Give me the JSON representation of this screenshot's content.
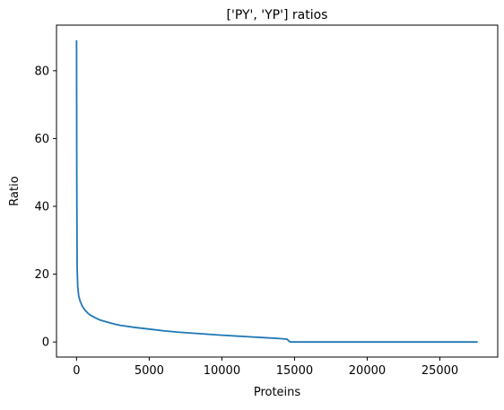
{
  "chart_data": {
    "type": "line",
    "title": "['PY', 'YP'] ratios",
    "xlabel": "Proteins",
    "ylabel": "Ratio",
    "xlim": [
      -1380,
      28980
    ],
    "ylim": [
      -4.45,
      93.45
    ],
    "grid": false,
    "legend": "none",
    "x_ticks": [
      0,
      5000,
      10000,
      15000,
      20000,
      25000
    ],
    "x_tick_labels": [
      "0",
      "5000",
      "10000",
      "15000",
      "20000",
      "25000"
    ],
    "y_ticks": [
      0,
      20,
      40,
      60,
      80
    ],
    "y_tick_labels": [
      "0",
      "20",
      "40",
      "60",
      "80"
    ],
    "series": [
      {
        "color": "#1f77b4",
        "x": [
          0,
          15,
          40,
          80,
          150,
          250,
          400,
          600,
          800,
          1000,
          1300,
          1600,
          2000,
          2500,
          3000,
          4000,
          5000,
          6000,
          7000,
          8000,
          9000,
          10000,
          11000,
          12000,
          13000,
          14000,
          14500,
          14600,
          14700,
          16000,
          20000,
          25000,
          27600
        ],
        "y": [
          89,
          48,
          22,
          16.5,
          13.5,
          12,
          10.5,
          9.3,
          8.4,
          7.8,
          7.1,
          6.5,
          6.0,
          5.4,
          4.9,
          4.3,
          3.8,
          3.3,
          2.9,
          2.6,
          2.3,
          2.0,
          1.75,
          1.5,
          1.25,
          1.0,
          0.8,
          0.3,
          0.0,
          0.0,
          0.0,
          0.0,
          0.0
        ]
      }
    ]
  }
}
